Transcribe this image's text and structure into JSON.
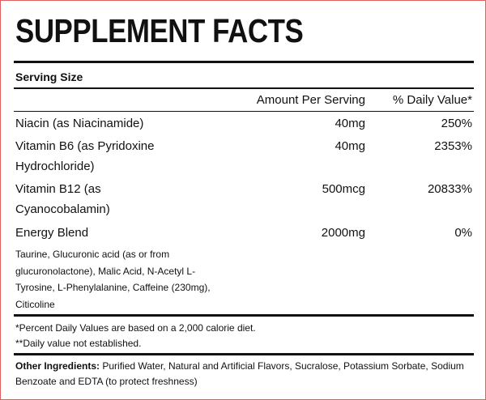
{
  "header": {
    "title": "SUPPLEMENT FACTS",
    "serving_size": "Serving Size"
  },
  "table": {
    "columns": [
      "Amount Per Serving",
      "% Daily Value*"
    ],
    "rows": [
      {
        "name": [
          "Niacin (as Niacinamide)"
        ],
        "amount": "40mg",
        "daily_value": "250%"
      },
      {
        "name": [
          "Vitamin B6 (as Pyridoxine",
          "Hydrochloride)"
        ],
        "amount": "40mg",
        "daily_value": "2353%"
      },
      {
        "name": [
          "Vitamin B12 (as",
          "Cyanocobalamin)"
        ],
        "amount": "500mcg",
        "daily_value": "20833%"
      },
      {
        "name": [
          "Energy Blend"
        ],
        "amount": "2000mg",
        "daily_value": "0%"
      }
    ],
    "blend_ingredients": [
      "Taurine, Glucuronic acid (as or from",
      "glucuronolactone), Malic Acid, N-Acetyl L-",
      "Tyrosine, L-Phenylalanine, Caffeine (230mg),",
      "Citicoline"
    ]
  },
  "footnotes": [
    "*Percent Daily Values are based on a 2,000 calorie diet.",
    "**Daily value not established."
  ],
  "other_ingredients": {
    "label": "Other Ingredients:",
    "text": "Purified Water, Natural and Artificial Flavors, Sucralose, Potassium Sorbate, Sodium Benzoate and EDTA (to protect freshness)"
  }
}
